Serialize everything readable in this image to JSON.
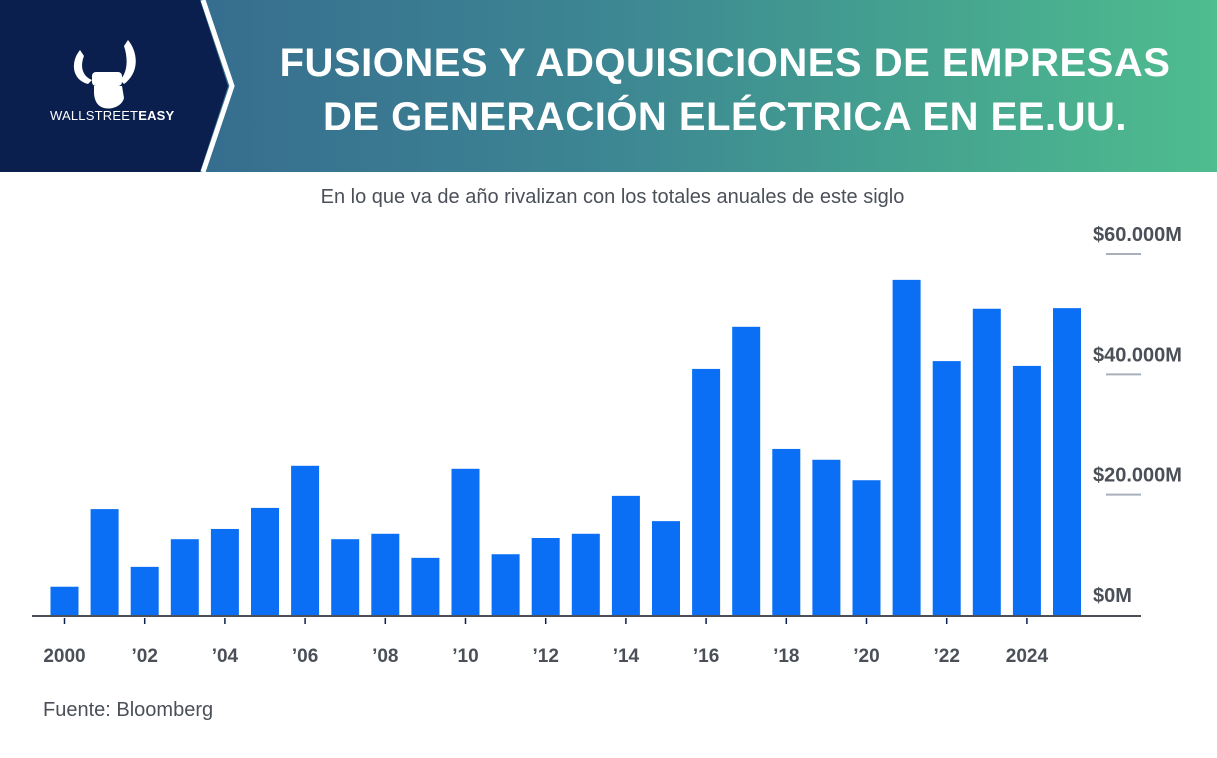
{
  "header": {
    "title_line1": "FUSIONES Y ADQUISICIONES DE EMPRESAS",
    "title_line2": "DE GENERACIÓN ELÉCTRICA EN EE.UU.",
    "brand_light": "WALLSTREET",
    "brand_bold": "EASY",
    "logo_icon": "bull-fist-icon"
  },
  "colors": {
    "bar": "#0a6ff5",
    "logo_bg": "#0a1f4e",
    "axis": "#4b5058",
    "grid": "#a8b1ba"
  },
  "chart_data": {
    "type": "bar",
    "title": "FUSIONES Y ADQUISICIONES DE EMPRESAS DE GENERACIÓN ELÉCTRICA EN EE.UU.",
    "subtitle": "En lo que va de año rivalizan con los totales anuales de este siglo",
    "xlabel": "",
    "ylabel": "",
    "unit": "millones de USD",
    "categories": [
      "2000",
      "2001",
      "2002",
      "2003",
      "2004",
      "2005",
      "2006",
      "2007",
      "2008",
      "2009",
      "2010",
      "2011",
      "2012",
      "2013",
      "2014",
      "2015",
      "2016",
      "2017",
      "2018",
      "2019",
      "2020",
      "2021",
      "2022",
      "2023",
      "2024",
      "2025"
    ],
    "values": [
      4700,
      17600,
      8000,
      12600,
      14300,
      17800,
      24800,
      12600,
      13500,
      9500,
      24300,
      10100,
      12800,
      13500,
      19800,
      15600,
      40900,
      47900,
      27600,
      25800,
      22400,
      55700,
      42200,
      50900,
      41400,
      51000
    ],
    "ylim": [
      0,
      60000
    ],
    "y_ticks": [
      {
        "value": 0,
        "label": "$0M"
      },
      {
        "value": 20000,
        "label": "$20.000M"
      },
      {
        "value": 40000,
        "label": "$40.000M"
      },
      {
        "value": 60000,
        "label": "$60.000M"
      }
    ],
    "x_ticks": [
      {
        "index": 0,
        "label": "2000"
      },
      {
        "index": 2,
        "label": "’02"
      },
      {
        "index": 4,
        "label": "’04"
      },
      {
        "index": 6,
        "label": "’06"
      },
      {
        "index": 8,
        "label": "’08"
      },
      {
        "index": 10,
        "label": "’10"
      },
      {
        "index": 12,
        "label": "’12"
      },
      {
        "index": 14,
        "label": "’14"
      },
      {
        "index": 16,
        "label": "’16"
      },
      {
        "index": 18,
        "label": "’18"
      },
      {
        "index": 20,
        "label": "’20"
      },
      {
        "index": 22,
        "label": "’22"
      },
      {
        "index": 24,
        "label": "2024"
      }
    ],
    "y_axis_position": "right",
    "grid": false,
    "legend": "none",
    "source": "Fuente: Bloomberg"
  }
}
